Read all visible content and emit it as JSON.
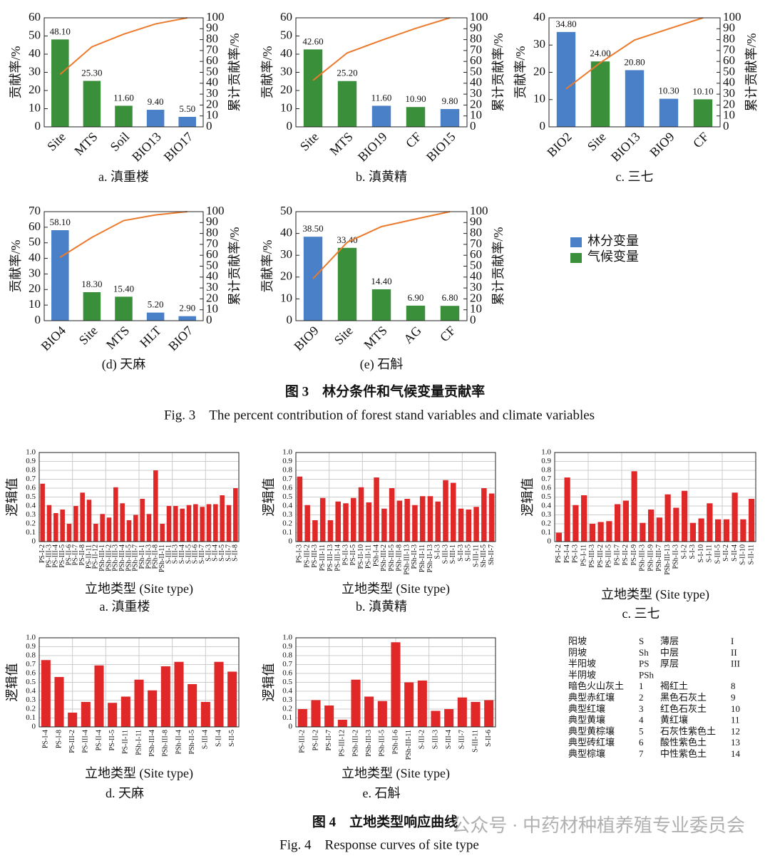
{
  "chart_data": [
    {
      "type": "bar",
      "caption": "a. 滇重楼",
      "y_label": "贡献率/%",
      "y2_label": "累计贡献率/%",
      "categories": [
        "Site",
        "MTS",
        "Soil",
        "BIO13",
        "BIO17"
      ],
      "series": [
        {
          "type": "bar",
          "values": [
            48.1,
            25.3,
            11.6,
            9.4,
            5.5
          ],
          "value_labels": [
            "48.10",
            "25.30",
            "11.60",
            "9.40",
            "5.50"
          ],
          "colors": [
            "#3a8f3a",
            "#3a8f3a",
            "#3a8f3a",
            "#4a80c8",
            "#4a80c8"
          ]
        },
        {
          "type": "line",
          "axis": "y2",
          "color": "#ec7a2c",
          "values": [
            48.1,
            73.4,
            85,
            94.4,
            100
          ]
        }
      ],
      "ylim": [
        0,
        60
      ],
      "yticks": [
        0,
        10,
        20,
        30,
        40,
        50,
        60
      ],
      "y2lim": [
        0,
        100
      ],
      "y2ticks": [
        0,
        10,
        20,
        30,
        40,
        50,
        60,
        70,
        80,
        90,
        100
      ]
    },
    {
      "type": "bar",
      "caption": "b. 滇黄精",
      "y_label": "贡献率/%",
      "y2_label": "累计贡献率/%",
      "categories": [
        "Site",
        "MTS",
        "BIO19",
        "CF",
        "BIO15"
      ],
      "series": [
        {
          "type": "bar",
          "values": [
            42.6,
            25.2,
            11.6,
            10.9,
            9.8
          ],
          "value_labels": [
            "42.60",
            "25.20",
            "11.60",
            "10.90",
            "9.80"
          ],
          "colors": [
            "#3a8f3a",
            "#3a8f3a",
            "#4a80c8",
            "#3a8f3a",
            "#4a80c8"
          ]
        },
        {
          "type": "line",
          "axis": "y2",
          "color": "#ec7a2c",
          "values": [
            42.6,
            67.8,
            79.4,
            90.3,
            100
          ]
        }
      ],
      "ylim": [
        0,
        60
      ],
      "yticks": [
        0,
        10,
        20,
        30,
        40,
        50,
        60
      ],
      "y2lim": [
        0,
        100
      ],
      "y2ticks": [
        0,
        10,
        20,
        30,
        40,
        50,
        60,
        70,
        80,
        90,
        100
      ]
    },
    {
      "type": "bar",
      "caption": "c. 三七",
      "y_label": "贡献率/%",
      "y2_label": "累计贡献率/%",
      "categories": [
        "BIO2",
        "Site",
        "BIO13",
        "BIO9",
        "CF"
      ],
      "series": [
        {
          "type": "bar",
          "values": [
            34.8,
            24.0,
            20.8,
            10.3,
            10.1
          ],
          "value_labels": [
            "34.80",
            "24.00",
            "20.80",
            "10.30",
            "10.10"
          ],
          "colors": [
            "#4a80c8",
            "#3a8f3a",
            "#4a80c8",
            "#4a80c8",
            "#3a8f3a"
          ]
        },
        {
          "type": "line",
          "axis": "y2",
          "color": "#ec7a2c",
          "values": [
            34.8,
            58.8,
            79.6,
            89.9,
            100
          ]
        }
      ],
      "ylim": [
        0,
        40
      ],
      "yticks": [
        0,
        10,
        20,
        30,
        40
      ],
      "y2lim": [
        0,
        100
      ],
      "y2ticks": [
        0,
        10,
        20,
        30,
        40,
        50,
        60,
        70,
        80,
        90,
        100
      ]
    },
    {
      "type": "bar",
      "caption": "(d) 天麻",
      "y_label": "贡献率/%",
      "y2_label": "累计贡献率/%",
      "categories": [
        "BIO4",
        "Site",
        "MTS",
        "HLT",
        "BIO7"
      ],
      "series": [
        {
          "type": "bar",
          "values": [
            58.1,
            18.3,
            15.4,
            5.2,
            2.9
          ],
          "value_labels": [
            "58.10",
            "18.30",
            "15.40",
            "5.20",
            "2.90"
          ],
          "colors": [
            "#4a80c8",
            "#3a8f3a",
            "#3a8f3a",
            "#4a80c8",
            "#4a80c8"
          ]
        },
        {
          "type": "line",
          "axis": "y2",
          "color": "#ec7a2c",
          "values": [
            58.1,
            76.4,
            91.8,
            97,
            100
          ]
        }
      ],
      "ylim": [
        0,
        70
      ],
      "yticks": [
        0,
        10,
        20,
        30,
        40,
        50,
        60,
        70
      ],
      "y2lim": [
        0,
        100
      ],
      "y2ticks": [
        0,
        10,
        20,
        30,
        40,
        50,
        60,
        70,
        80,
        90,
        100
      ]
    },
    {
      "type": "bar",
      "caption": "(e) 石斛",
      "y_label": "贡献率/%",
      "y2_label": "累计贡献率/%",
      "categories": [
        "BIO9",
        "Site",
        "MTS",
        "AG",
        "CF"
      ],
      "series": [
        {
          "type": "bar",
          "values": [
            38.5,
            33.4,
            14.4,
            6.9,
            6.8
          ],
          "value_labels": [
            "38.50",
            "33.40",
            "14.40",
            "6.90",
            "6.80"
          ],
          "colors": [
            "#4a80c8",
            "#3a8f3a",
            "#3a8f3a",
            "#3a8f3a",
            "#3a8f3a"
          ]
        },
        {
          "type": "line",
          "axis": "y2",
          "color": "#ec7a2c",
          "values": [
            38.5,
            71.9,
            86.3,
            93.2,
            100
          ]
        }
      ],
      "ylim": [
        0,
        50
      ],
      "yticks": [
        0,
        10,
        20,
        30,
        40,
        50
      ],
      "y2lim": [
        0,
        100
      ],
      "y2ticks": [
        0,
        10,
        20,
        30,
        40,
        50,
        60,
        70,
        80,
        90,
        100
      ]
    },
    {
      "type": "bar",
      "caption": "a. 滇重楼",
      "y_label": "逻辑值",
      "x_label": "立地类型 (Site type)",
      "grid": true,
      "categories": [
        "PS-I-2",
        "PS-III-3",
        "PS-III-4",
        "PS-III-5",
        "PS-II-6",
        "PS-II-7",
        "PS-II-8",
        "PS-II-11",
        "PS-II-12",
        "PSh-III-1",
        "PSh-III-2",
        "PSh-III-3",
        "PSh-III-4",
        "PSh-III-5",
        "PSh-III-7",
        "PSh-II-1",
        "PSh-II-3",
        "PSh-II-8",
        "PSh-II-11",
        "S-III-1",
        "S-III-3",
        "S-III-4",
        "S-III-5",
        "S-III-6",
        "S-III-7",
        "S-II-3",
        "S-II-4",
        "S-II-5",
        "S-II-7",
        "S-II-8"
      ],
      "series": [
        {
          "type": "bar",
          "color": "#e02828",
          "values": [
            0.65,
            0.41,
            0.32,
            0.36,
            0.2,
            0.4,
            0.55,
            0.47,
            0.2,
            0.31,
            0.27,
            0.61,
            0.43,
            0.24,
            0.3,
            0.48,
            0.31,
            0.8,
            0.2,
            0.4,
            0.4,
            0.37,
            0.41,
            0.42,
            0.39,
            0.42,
            0.42,
            0.52,
            0.41,
            0.6
          ]
        }
      ],
      "ylim": [
        0,
        1
      ],
      "yticks": [
        0,
        0.1,
        0.2,
        0.3,
        0.4,
        0.5,
        0.6,
        0.7,
        0.8,
        0.9,
        {
          "value": 1,
          "label": "1.0"
        }
      ]
    },
    {
      "type": "bar",
      "caption": "b.  滇黄精",
      "y_label": "逻辑值",
      "x_label": "立地类型 (Site type)",
      "grid": true,
      "categories": [
        "PS-I-3",
        "PS-III-2",
        "PS-III-3",
        "PS-III-11",
        "PS-III-13",
        "PS-III-14",
        "PS-II-3",
        "PS-II-5",
        "PS-II-10",
        "PS-II-11",
        "PSh-I-4",
        "PSh-III-2",
        "PSh-III-5",
        "PSh-III-8",
        "PSh-III-13",
        "PSh-II-3",
        "PSh-II-11",
        "PSh-II-13",
        "S-I-3",
        "S-III-3",
        "S-III-1",
        "S-II-3",
        "S-II-5",
        "S-III-11",
        "Sh-III-5",
        "Sh-II-7"
      ],
      "series": [
        {
          "type": "bar",
          "color": "#e02828",
          "values": [
            0.73,
            0.41,
            0.24,
            0.49,
            0.24,
            0.45,
            0.43,
            0.49,
            0.61,
            0.44,
            0.72,
            0.37,
            0.6,
            0.46,
            0.48,
            0.41,
            0.51,
            0.51,
            0.45,
            0.69,
            0.66,
            0.37,
            0.36,
            0.39,
            0.6,
            0.54
          ]
        }
      ],
      "ylim": [
        0,
        1
      ],
      "yticks": [
        0,
        0.1,
        0.2,
        0.3,
        0.4,
        0.5,
        0.6,
        0.7,
        0.8,
        0.9,
        {
          "value": 1,
          "label": "1.0"
        }
      ]
    },
    {
      "type": "bar",
      "caption": "c. 三七",
      "y_label": "逻辑值",
      "x_label": "立地类型 (Site type)",
      "grid": true,
      "categories": [
        "PS-I-2",
        "PS-I-4",
        "PS-I-3",
        "PS-I-11",
        "PS-III-3",
        "PS-III-2",
        "PS-III-5",
        "PS-II-7",
        "PS-II-2",
        "PS-II-9",
        "PSh-III-3",
        "PSh-III-9",
        "PSh-III-7",
        "PSh-III-13",
        "PSh-II-3",
        "S-I-2",
        "S-I-3",
        "S-I-10",
        "S-I-11",
        "S-III-5",
        "S-II-2",
        "S-II-4",
        "S-II-10",
        "S-II-11"
      ],
      "series": [
        {
          "type": "bar",
          "color": "#e02828",
          "values": [
            0.1,
            0.72,
            0.41,
            0.52,
            0.2,
            0.22,
            0.23,
            0.42,
            0.46,
            0.79,
            0.21,
            0.36,
            0.27,
            0.53,
            0.38,
            0.57,
            0.21,
            0.26,
            0.43,
            0.25,
            0.25,
            0.55,
            0.25,
            0.48
          ]
        }
      ],
      "ylim": [
        0,
        1
      ],
      "yticks": [
        0,
        0.1,
        0.2,
        0.3,
        0.4,
        0.5,
        0.6,
        0.7,
        0.8,
        0.9,
        {
          "value": 1,
          "label": "1.0"
        }
      ]
    },
    {
      "type": "bar",
      "caption": "d. 天麻",
      "y_label": "逻辑值",
      "x_label": "立地类型 (Site type)",
      "grid": true,
      "categories": [
        "PS-I-4",
        "PS-I-8",
        "PS-III-2",
        "PS-III-4",
        "PS-II-4",
        "PS-II-5",
        "PS-II-11",
        "PSh-I-11",
        "PSh-III-4",
        "PSh-III-8",
        "PSh-II-4",
        "PSh-II-5",
        "S-III-4",
        "S-II-4",
        "S-II-5"
      ],
      "series": [
        {
          "type": "bar",
          "color": "#e02828",
          "values": [
            0.75,
            0.56,
            0.16,
            0.28,
            0.69,
            0.27,
            0.34,
            0.53,
            0.41,
            0.68,
            0.73,
            0.48,
            0.28,
            0.73,
            0.62
          ]
        }
      ],
      "ylim": [
        0,
        1
      ],
      "yticks": [
        0,
        0.1,
        0.2,
        0.3,
        0.4,
        0.5,
        0.6,
        0.7,
        0.8,
        0.9,
        {
          "value": 1,
          "label": "1.0"
        }
      ]
    },
    {
      "type": "bar",
      "caption": "e. 石斛",
      "y_label": "逻辑值",
      "x_label": "立地类型 (Site type)",
      "grid": true,
      "categories": [
        "PS-III-2",
        "PS-II-2",
        "PS-II-7",
        "PS-III-12",
        "PSh-III-2",
        "PSh-III-3",
        "PSh-III-5",
        "PSh-II-6",
        "PSh-III-11",
        "S-III-2",
        "S-III-3",
        "S-III-4",
        "S-III-7",
        "S-III-11",
        "S-II-6"
      ],
      "series": [
        {
          "type": "bar",
          "color": "#e02828",
          "values": [
            0.2,
            0.3,
            0.24,
            0.08,
            0.53,
            0.34,
            0.29,
            0.95,
            0.5,
            0.52,
            0.18,
            0.2,
            0.33,
            0.28,
            0.3
          ]
        }
      ],
      "ylim": [
        0,
        1
      ],
      "yticks": [
        0,
        0.1,
        0.2,
        0.3,
        0.4,
        0.5,
        0.6,
        0.7,
        0.8,
        0.9,
        {
          "value": 1,
          "label": "1.0"
        }
      ]
    }
  ],
  "legend": [
    {
      "name": "林分变量",
      "color": "#4a80c8"
    },
    {
      "name": "气候变量",
      "color": "#3a8f3a"
    }
  ],
  "fig3": {
    "title_cn": "图 3　林分条件和气候变量贡献率",
    "title_en": "Fig. 3　The percent contribution of forest stand variables and climate variables"
  },
  "fig4": {
    "title_cn": "图 4　立地类型响应曲线",
    "title_en": "Fig. 4　Response curves of site type"
  },
  "key": {
    "rows": [
      [
        "阳坡",
        "S",
        "薄层",
        "I"
      ],
      [
        "阴坡",
        "Sh",
        "中层",
        "II"
      ],
      [
        "半阳坡",
        "PS",
        "厚层",
        "III"
      ],
      [
        "半阴坡",
        "PSh"
      ],
      [
        "暗色火山灰土",
        "1",
        "褐红土",
        "8"
      ],
      [
        "典型赤红壤",
        "2",
        "黑色石灰土",
        "9"
      ],
      [
        "典型红壤",
        "3",
        "红色石灰土",
        "10"
      ],
      [
        "典型黄壤",
        "4",
        "黄红壤",
        "11"
      ],
      [
        "典型黄棕壤",
        "5",
        "石灰性紫色土",
        "12"
      ],
      [
        "典型砖红壤",
        "6",
        "酸性紫色土",
        "13"
      ],
      [
        "典型棕壤",
        "7",
        "中性紫色土",
        "14"
      ]
    ]
  },
  "watermark": "公众号 · 中药材种植养殖专业委员会"
}
